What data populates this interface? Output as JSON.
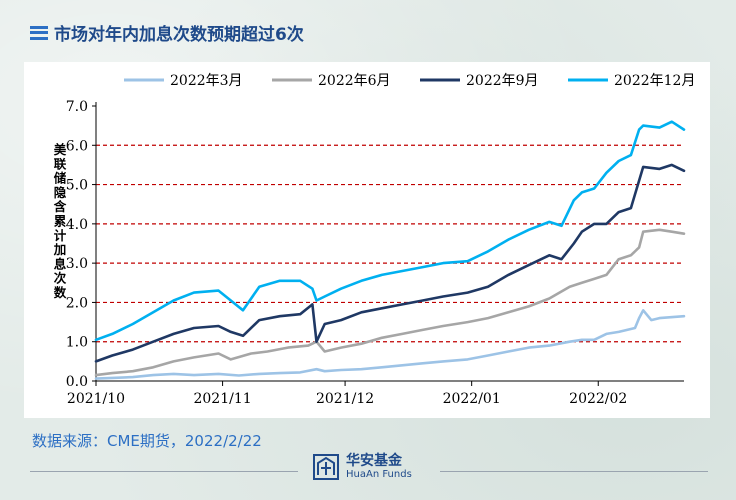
{
  "title": "市场对年内加息次数预期超过6次",
  "source": "数据来源：CME期货，2022/2/22",
  "logo": {
    "cn": "华安基金",
    "en": "HuaAn Funds"
  },
  "colors": {
    "title": "#1f4a8a",
    "accent": "#2c6fc4",
    "gridline": "#c00000"
  },
  "chart_data": {
    "type": "line",
    "ylabel": "美联储隐含累计加息次数",
    "xlabel": "",
    "ylim": [
      0,
      7
    ],
    "yticks": [
      "0.0",
      "1.0",
      "2.0",
      "3.0",
      "4.0",
      "5.0",
      "6.0",
      "7.0"
    ],
    "xlim": [
      "2021-10-01",
      "2022-02-22"
    ],
    "xticks": [
      {
        "label": "2021/10",
        "date": "2021-10-01"
      },
      {
        "label": "2021/11",
        "date": "2021-11-01"
      },
      {
        "label": "2021/12",
        "date": "2021-12-01"
      },
      {
        "label": "2022/01",
        "date": "2022-01-01"
      },
      {
        "label": "2022/02",
        "date": "2022-02-01"
      }
    ],
    "grid": "dashed horizontal gridlines at 1.0–6.0",
    "legend": "top",
    "series": [
      {
        "name": "2022年3月",
        "color": "#9dc3e6",
        "points": [
          [
            "2021-10-01",
            0.06
          ],
          [
            "2021-10-05",
            0.08
          ],
          [
            "2021-10-10",
            0.1
          ],
          [
            "2021-10-15",
            0.15
          ],
          [
            "2021-10-20",
            0.18
          ],
          [
            "2021-10-25",
            0.15
          ],
          [
            "2021-10-31",
            0.18
          ],
          [
            "2021-11-05",
            0.14
          ],
          [
            "2021-11-10",
            0.18
          ],
          [
            "2021-11-15",
            0.2
          ],
          [
            "2021-11-20",
            0.22
          ],
          [
            "2021-11-24",
            0.3
          ],
          [
            "2021-11-26",
            0.25
          ],
          [
            "2021-11-30",
            0.28
          ],
          [
            "2021-12-05",
            0.3
          ],
          [
            "2021-12-10",
            0.35
          ],
          [
            "2021-12-15",
            0.4
          ],
          [
            "2021-12-20",
            0.45
          ],
          [
            "2021-12-25",
            0.5
          ],
          [
            "2021-12-31",
            0.55
          ],
          [
            "2022-01-05",
            0.65
          ],
          [
            "2022-01-10",
            0.75
          ],
          [
            "2022-01-15",
            0.85
          ],
          [
            "2022-01-20",
            0.9
          ],
          [
            "2022-01-25",
            1.0
          ],
          [
            "2022-01-28",
            1.05
          ],
          [
            "2022-01-31",
            1.05
          ],
          [
            "2022-02-03",
            1.2
          ],
          [
            "2022-02-06",
            1.25
          ],
          [
            "2022-02-10",
            1.35
          ],
          [
            "2022-02-11",
            1.6
          ],
          [
            "2022-02-12",
            1.8
          ],
          [
            "2022-02-14",
            1.55
          ],
          [
            "2022-02-16",
            1.6
          ],
          [
            "2022-02-18",
            1.62
          ],
          [
            "2022-02-22",
            1.65
          ]
        ]
      },
      {
        "name": "2022年6月",
        "color": "#a6a6a6",
        "points": [
          [
            "2021-10-01",
            0.15
          ],
          [
            "2021-10-05",
            0.2
          ],
          [
            "2021-10-10",
            0.25
          ],
          [
            "2021-10-15",
            0.35
          ],
          [
            "2021-10-20",
            0.5
          ],
          [
            "2021-10-25",
            0.6
          ],
          [
            "2021-10-31",
            0.7
          ],
          [
            "2021-11-03",
            0.55
          ],
          [
            "2021-11-08",
            0.7
          ],
          [
            "2021-11-12",
            0.75
          ],
          [
            "2021-11-17",
            0.85
          ],
          [
            "2021-11-22",
            0.9
          ],
          [
            "2021-11-24",
            1.0
          ],
          [
            "2021-11-26",
            0.75
          ],
          [
            "2021-11-30",
            0.85
          ],
          [
            "2021-12-05",
            0.95
          ],
          [
            "2021-12-10",
            1.1
          ],
          [
            "2021-12-15",
            1.2
          ],
          [
            "2021-12-20",
            1.3
          ],
          [
            "2021-12-25",
            1.4
          ],
          [
            "2021-12-31",
            1.5
          ],
          [
            "2022-01-05",
            1.6
          ],
          [
            "2022-01-10",
            1.75
          ],
          [
            "2022-01-15",
            1.9
          ],
          [
            "2022-01-20",
            2.1
          ],
          [
            "2022-01-25",
            2.4
          ],
          [
            "2022-01-28",
            2.5
          ],
          [
            "2022-01-31",
            2.6
          ],
          [
            "2022-02-03",
            2.7
          ],
          [
            "2022-02-06",
            3.1
          ],
          [
            "2022-02-09",
            3.2
          ],
          [
            "2022-02-11",
            3.4
          ],
          [
            "2022-02-12",
            3.8
          ],
          [
            "2022-02-16",
            3.85
          ],
          [
            "2022-02-19",
            3.8
          ],
          [
            "2022-02-22",
            3.75
          ]
        ]
      },
      {
        "name": "2022年9月",
        "color": "#1f3864",
        "points": [
          [
            "2021-10-01",
            0.5
          ],
          [
            "2021-10-05",
            0.65
          ],
          [
            "2021-10-10",
            0.8
          ],
          [
            "2021-10-15",
            1.0
          ],
          [
            "2021-10-20",
            1.2
          ],
          [
            "2021-10-25",
            1.35
          ],
          [
            "2021-10-31",
            1.4
          ],
          [
            "2021-11-03",
            1.25
          ],
          [
            "2021-11-06",
            1.15
          ],
          [
            "2021-11-10",
            1.55
          ],
          [
            "2021-11-15",
            1.65
          ],
          [
            "2021-11-20",
            1.7
          ],
          [
            "2021-11-23",
            1.95
          ],
          [
            "2021-11-24",
            1.0
          ],
          [
            "2021-11-26",
            1.45
          ],
          [
            "2021-11-30",
            1.55
          ],
          [
            "2021-12-05",
            1.75
          ],
          [
            "2021-12-10",
            1.85
          ],
          [
            "2021-12-15",
            1.95
          ],
          [
            "2021-12-20",
            2.05
          ],
          [
            "2021-12-25",
            2.15
          ],
          [
            "2021-12-31",
            2.25
          ],
          [
            "2022-01-05",
            2.4
          ],
          [
            "2022-01-10",
            2.7
          ],
          [
            "2022-01-15",
            2.95
          ],
          [
            "2022-01-20",
            3.2
          ],
          [
            "2022-01-23",
            3.1
          ],
          [
            "2022-01-26",
            3.5
          ],
          [
            "2022-01-28",
            3.8
          ],
          [
            "2022-01-31",
            4.0
          ],
          [
            "2022-02-03",
            4.0
          ],
          [
            "2022-02-06",
            4.3
          ],
          [
            "2022-02-09",
            4.4
          ],
          [
            "2022-02-11",
            5.1
          ],
          [
            "2022-02-12",
            5.45
          ],
          [
            "2022-02-16",
            5.4
          ],
          [
            "2022-02-19",
            5.5
          ],
          [
            "2022-02-22",
            5.35
          ]
        ]
      },
      {
        "name": "2022年12月",
        "color": "#00b0f0",
        "points": [
          [
            "2021-10-01",
            1.05
          ],
          [
            "2021-10-05",
            1.2
          ],
          [
            "2021-10-10",
            1.45
          ],
          [
            "2021-10-15",
            1.75
          ],
          [
            "2021-10-20",
            2.05
          ],
          [
            "2021-10-25",
            2.25
          ],
          [
            "2021-10-31",
            2.3
          ],
          [
            "2021-11-03",
            2.05
          ],
          [
            "2021-11-06",
            1.8
          ],
          [
            "2021-11-10",
            2.4
          ],
          [
            "2021-11-15",
            2.55
          ],
          [
            "2021-11-20",
            2.55
          ],
          [
            "2021-11-23",
            2.35
          ],
          [
            "2021-11-24",
            2.05
          ],
          [
            "2021-11-26",
            2.15
          ],
          [
            "2021-11-30",
            2.35
          ],
          [
            "2021-12-05",
            2.55
          ],
          [
            "2021-12-10",
            2.7
          ],
          [
            "2021-12-15",
            2.8
          ],
          [
            "2021-12-20",
            2.9
          ],
          [
            "2021-12-25",
            3.0
          ],
          [
            "2021-12-31",
            3.05
          ],
          [
            "2022-01-05",
            3.3
          ],
          [
            "2022-01-10",
            3.6
          ],
          [
            "2022-01-15",
            3.85
          ],
          [
            "2022-01-20",
            4.05
          ],
          [
            "2022-01-23",
            3.95
          ],
          [
            "2022-01-26",
            4.6
          ],
          [
            "2022-01-28",
            4.8
          ],
          [
            "2022-01-31",
            4.9
          ],
          [
            "2022-02-03",
            5.3
          ],
          [
            "2022-02-06",
            5.6
          ],
          [
            "2022-02-09",
            5.75
          ],
          [
            "2022-02-11",
            6.4
          ],
          [
            "2022-02-12",
            6.5
          ],
          [
            "2022-02-16",
            6.45
          ],
          [
            "2022-02-19",
            6.6
          ],
          [
            "2022-02-22",
            6.4
          ]
        ]
      }
    ]
  }
}
